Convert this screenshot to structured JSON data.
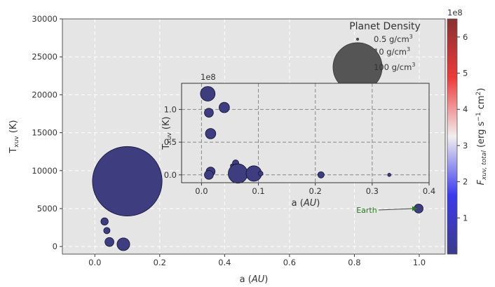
{
  "chart_data": {
    "type": "scatter",
    "main": {
      "xlabel_main": "a (",
      "xlabel_italic": "AU",
      "xlabel_close": ")",
      "ylabel_base": "T",
      "ylabel_sub": "xuv",
      "ylabel_unit": " (K)",
      "xlim": [
        -0.1,
        1.08
      ],
      "ylim": [
        -1000,
        30000
      ],
      "xticks": [
        0.0,
        0.2,
        0.4,
        0.6,
        0.8,
        1.0
      ],
      "xtick_labels": [
        "0.0",
        "0.2",
        "0.4",
        "0.6",
        "0.8",
        "1.0"
      ],
      "yticks": [
        0,
        5000,
        10000,
        15000,
        20000,
        25000,
        30000
      ],
      "ytick_labels": [
        "0",
        "5000",
        "10000",
        "15000",
        "20000",
        "25000",
        "30000"
      ],
      "grid": true,
      "points": [
        {
          "x": 0.015,
          "y": 9200,
          "density": 4
        },
        {
          "x": 0.02,
          "y": 8000,
          "density": 3
        },
        {
          "x": 0.1,
          "y": 8600,
          "density": 180
        },
        {
          "x": 0.03,
          "y": 3300,
          "density": 2
        },
        {
          "x": 0.037,
          "y": 2100,
          "density": 1.5
        },
        {
          "x": 0.045,
          "y": 600,
          "density": 3
        },
        {
          "x": 0.088,
          "y": 300,
          "density": 6
        },
        {
          "x": 0.998,
          "y": 5000,
          "density": 3
        }
      ],
      "annotation": {
        "text": "Earth",
        "x": 1.0,
        "y": 5000,
        "color": "#2a7a1f"
      }
    },
    "inset": {
      "xlabel_main": "a (",
      "xlabel_italic": "AU",
      "xlabel_close": ")",
      "ylabel_base": "T",
      "ylabel_sub": "xuv",
      "ylabel_unit": " (K)",
      "offset_text": "1e8",
      "xlim": [
        -0.035,
        0.4
      ],
      "ylim": [
        -0.12,
        1.4
      ],
      "xticks": [
        0.0,
        0.1,
        0.2,
        0.3,
        0.4
      ],
      "xtick_labels": [
        "0.0",
        "0.1",
        "0.2",
        "0.3",
        "0.4"
      ],
      "yticks": [
        0.0,
        0.5,
        1.0
      ],
      "ytick_labels": [
        "0.0",
        "0.5",
        "1.0"
      ],
      "grid": true,
      "points": [
        {
          "x": 0.011,
          "y": 1.24,
          "density": 8
        },
        {
          "x": 0.013,
          "y": 0.95,
          "density": 3
        },
        {
          "x": 0.016,
          "y": 0.63,
          "density": 4
        },
        {
          "x": 0.04,
          "y": 1.03,
          "density": 4
        },
        {
          "x": 0.016,
          "y": 0.05,
          "density": 3
        },
        {
          "x": 0.013,
          "y": 0.0,
          "density": 3
        },
        {
          "x": 0.06,
          "y": 0.18,
          "density": 1.5
        },
        {
          "x": 0.058,
          "y": 0.05,
          "density": 1.5
        },
        {
          "x": 0.054,
          "y": 0.14,
          "density": 0.5
        },
        {
          "x": 0.064,
          "y": 0.02,
          "density": 14
        },
        {
          "x": 0.092,
          "y": 0.02,
          "density": 9
        },
        {
          "x": 0.104,
          "y": 0.02,
          "density": 0.8
        },
        {
          "x": 0.21,
          "y": 0.0,
          "density": 1.5
        },
        {
          "x": 0.33,
          "y": 0.0,
          "density": 0.4
        }
      ]
    },
    "legend": {
      "title": "Planet Density",
      "placement": "top-right",
      "entries": [
        {
          "value": 0.5,
          "label": "0.5 g/cm",
          "sup": "3"
        },
        {
          "value": 10,
          "label": "10 g/cm",
          "sup": "3"
        },
        {
          "value": 100,
          "label": "100 g/cm",
          "sup": "3"
        }
      ]
    },
    "colorbar": {
      "label_base": "F",
      "label_sub": "xuv, total",
      "label_unit": " (erg s",
      "label_exp1": "−1",
      "label_mid": " cm",
      "label_exp2": "2",
      "label_close": ")",
      "offset_text": "1e8",
      "range": [
        0.0,
        6.5
      ],
      "ticks": [
        1,
        2,
        3,
        4,
        5,
        6
      ],
      "tick_labels": [
        "1",
        "2",
        "3",
        "4",
        "5",
        "6"
      ],
      "colors": {
        "low": "#3c3b8a",
        "mid_low": "#3a3aee",
        "mid": "#f2eff0",
        "mid_high": "#ee3a3a",
        "high": "#8a3030"
      }
    },
    "marker_color": "#3d3d80",
    "marker_edge": "#111133",
    "background": "#e5e5e5"
  }
}
